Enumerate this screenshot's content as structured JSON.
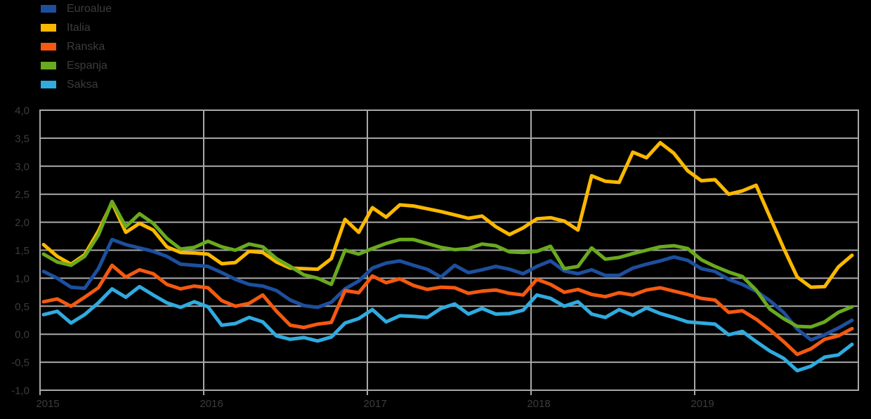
{
  "colors": {
    "background": "#000000",
    "grid": "#a9a9a9",
    "axis_text": "#3c3c3c",
    "euroalue": "#1d4f9e",
    "italia": "#fbb800",
    "ranska": "#f4590f",
    "espanja": "#69aa1e",
    "saksa": "#2fabdf"
  },
  "legend": {
    "items": [
      {
        "label": "Euroalue",
        "color": "#1d4f9e"
      },
      {
        "label": "Italia",
        "color": "#fbb800"
      },
      {
        "label": "Ranska",
        "color": "#f4590f"
      },
      {
        "label": "Espanja",
        "color": "#69aa1e"
      },
      {
        "label": "Saksa",
        "color": "#2fabdf"
      }
    ]
  },
  "chart_data": {
    "type": "line",
    "title": "",
    "xlabel": "",
    "ylabel": "",
    "grid": true,
    "legend_position": "top-left",
    "ylim": [
      -1.0,
      4.0
    ],
    "y_tick_step": 0.5,
    "y_tick_labels": [
      "4,0",
      "3,5",
      "3,0",
      "2,5",
      "2,0",
      "1,5",
      "1,0",
      "0,5",
      "0,0",
      "-0,5",
      "-1,0"
    ],
    "x_tick_labels": [
      "2015",
      "2016",
      "2017",
      "2018",
      "2019"
    ],
    "x_start": "2015-01",
    "x_end": "2019-12",
    "x_frequency": "monthly",
    "series": [
      {
        "name": "Euroalue",
        "color": "#1d4f9e",
        "values": [
          1.12,
          1.0,
          0.84,
          0.82,
          1.17,
          1.69,
          1.6,
          1.54,
          1.48,
          1.39,
          1.25,
          1.23,
          1.21,
          1.1,
          0.98,
          0.89,
          0.86,
          0.78,
          0.61,
          0.51,
          0.48,
          0.57,
          0.81,
          0.95,
          1.18,
          1.27,
          1.31,
          1.23,
          1.16,
          1.02,
          1.23,
          1.1,
          1.15,
          1.21,
          1.16,
          1.08,
          1.21,
          1.31,
          1.13,
          1.08,
          1.15,
          1.05,
          1.05,
          1.18,
          1.25,
          1.31,
          1.38,
          1.32,
          1.17,
          1.12,
          0.98,
          0.89,
          0.77,
          0.6,
          0.39,
          0.09,
          -0.1,
          -0.01,
          0.11,
          0.25
        ]
      },
      {
        "name": "Italia",
        "color": "#fbb800",
        "values": [
          1.6,
          1.39,
          1.25,
          1.42,
          1.84,
          2.35,
          1.82,
          1.98,
          1.86,
          1.56,
          1.46,
          1.45,
          1.43,
          1.26,
          1.28,
          1.48,
          1.46,
          1.29,
          1.18,
          1.17,
          1.16,
          1.35,
          2.05,
          1.82,
          2.26,
          2.09,
          2.31,
          2.29,
          2.24,
          2.19,
          2.13,
          2.07,
          2.11,
          1.92,
          1.78,
          1.9,
          2.06,
          2.08,
          2.02,
          1.86,
          2.83,
          2.73,
          2.71,
          3.25,
          3.15,
          3.42,
          3.23,
          2.92,
          2.74,
          2.76,
          2.5,
          2.56,
          2.66,
          2.1,
          1.54,
          1.02,
          0.84,
          0.85,
          1.2,
          1.41
        ]
      },
      {
        "name": "Ranska",
        "color": "#f4590f",
        "values": [
          0.58,
          0.63,
          0.5,
          0.66,
          0.83,
          1.23,
          1.02,
          1.15,
          1.08,
          0.89,
          0.81,
          0.86,
          0.83,
          0.6,
          0.5,
          0.55,
          0.7,
          0.41,
          0.16,
          0.12,
          0.18,
          0.21,
          0.78,
          0.74,
          1.04,
          0.92,
          0.99,
          0.87,
          0.8,
          0.84,
          0.83,
          0.73,
          0.77,
          0.79,
          0.73,
          0.7,
          0.98,
          0.89,
          0.75,
          0.8,
          0.71,
          0.67,
          0.74,
          0.7,
          0.79,
          0.83,
          0.77,
          0.71,
          0.64,
          0.61,
          0.39,
          0.42,
          0.27,
          0.08,
          -0.13,
          -0.36,
          -0.26,
          -0.09,
          -0.03,
          0.1
        ]
      },
      {
        "name": "Espanja",
        "color": "#69aa1e",
        "values": [
          1.43,
          1.29,
          1.23,
          1.39,
          1.77,
          2.37,
          1.92,
          2.15,
          1.98,
          1.71,
          1.52,
          1.55,
          1.66,
          1.56,
          1.5,
          1.61,
          1.56,
          1.35,
          1.21,
          1.06,
          1.0,
          0.89,
          1.5,
          1.43,
          1.53,
          1.62,
          1.69,
          1.69,
          1.62,
          1.55,
          1.51,
          1.53,
          1.61,
          1.58,
          1.47,
          1.46,
          1.48,
          1.57,
          1.17,
          1.21,
          1.54,
          1.34,
          1.37,
          1.44,
          1.5,
          1.56,
          1.58,
          1.53,
          1.33,
          1.21,
          1.11,
          1.03,
          0.79,
          0.45,
          0.28,
          0.14,
          0.13,
          0.22,
          0.39,
          0.49
        ]
      },
      {
        "name": "Saksa",
        "color": "#2fabdf",
        "values": [
          0.35,
          0.41,
          0.2,
          0.35,
          0.56,
          0.81,
          0.66,
          0.85,
          0.7,
          0.56,
          0.48,
          0.58,
          0.49,
          0.16,
          0.19,
          0.3,
          0.22,
          -0.03,
          -0.09,
          -0.06,
          -0.12,
          -0.05,
          0.2,
          0.28,
          0.44,
          0.22,
          0.33,
          0.32,
          0.3,
          0.46,
          0.54,
          0.36,
          0.46,
          0.36,
          0.37,
          0.43,
          0.7,
          0.64,
          0.5,
          0.58,
          0.36,
          0.3,
          0.44,
          0.34,
          0.47,
          0.37,
          0.3,
          0.22,
          0.2,
          0.18,
          -0.01,
          0.05,
          -0.13,
          -0.3,
          -0.43,
          -0.65,
          -0.57,
          -0.41,
          -0.37,
          -0.18
        ]
      }
    ]
  }
}
